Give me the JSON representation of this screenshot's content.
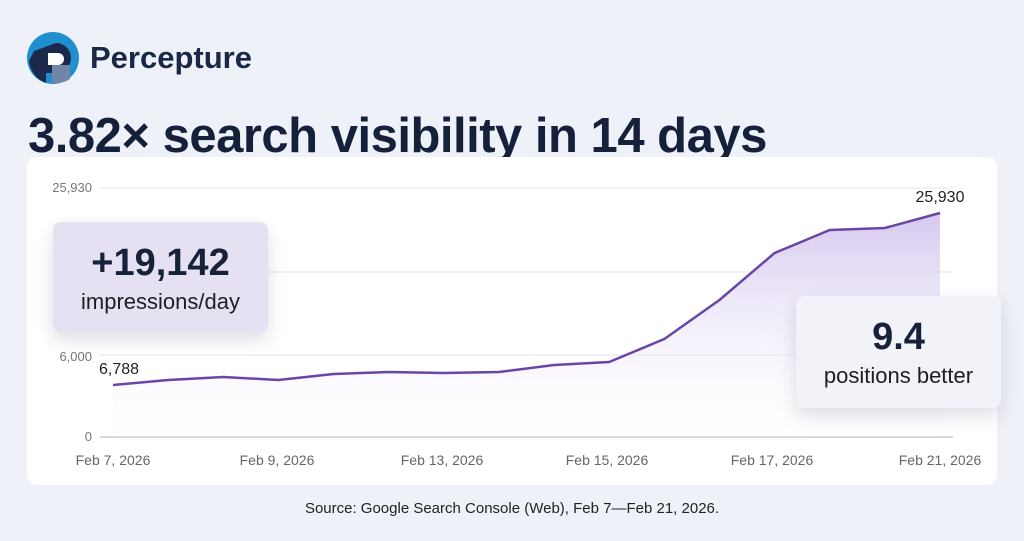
{
  "brand": {
    "name": "Percepture",
    "logo_icon": "percepture-logo-icon"
  },
  "headline": "3.82× search visibility in 14 days",
  "callouts": [
    {
      "value": "+19,142",
      "label": "impressions/day"
    },
    {
      "value": "9.4",
      "label": "positions better"
    }
  ],
  "source": "Source: Google Search Console (Web), Feb 7—Feb 21, 2026.",
  "chart_data": {
    "type": "area",
    "title": "",
    "xlabel": "",
    "ylabel": "",
    "x_tick_labels": [
      "Feb 7, 2026",
      "Feb 9, 2026",
      "Feb 13, 2026",
      "Feb 15, 2026",
      "Feb 17, 2026",
      "Feb 21, 2026"
    ],
    "y_tick_labels": [
      "25,930",
      "6,000",
      "0"
    ],
    "values": [
      6788,
      7344,
      7678,
      7344,
      8012,
      8235,
      8124,
      8235,
      9014,
      9348,
      11907,
      16248,
      21479,
      24039,
      24261,
      25930
    ],
    "data_labels": {
      "first": "6,788",
      "last": "25,930"
    },
    "grid": true,
    "line_color": "#6a45a8",
    "fill_color": "#dcd0f0"
  }
}
